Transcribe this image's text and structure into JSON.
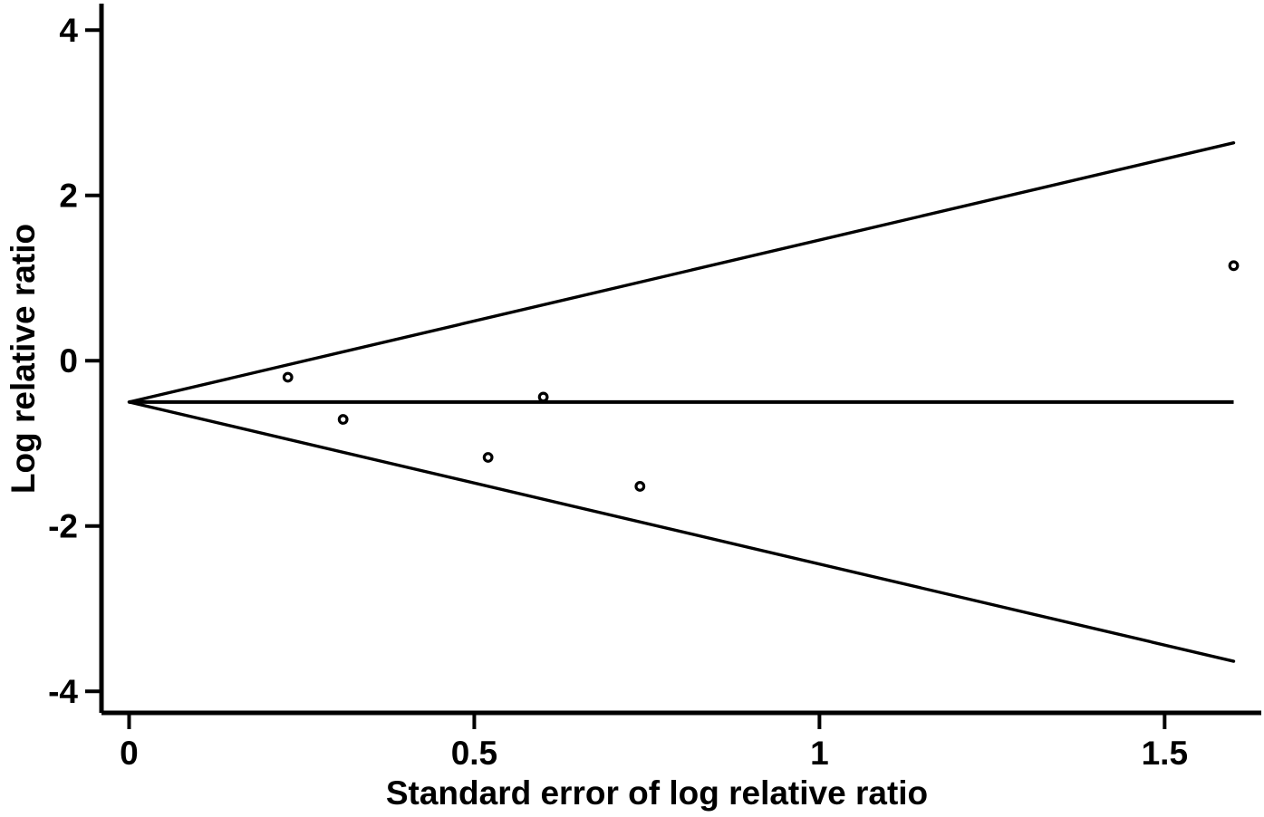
{
  "figure": {
    "background_color": "#ffffff",
    "ink_color": "#000000"
  },
  "chart_data": {
    "type": "scatter",
    "subtype": "funnel-plot",
    "title": "",
    "xlabel": "Standard error of log relative ratio",
    "ylabel": "Log relative ratio",
    "x_ticks": [
      0,
      0.5,
      1,
      1.5
    ],
    "x_tick_labels": [
      "0",
      "0.5",
      "1",
      "1.5"
    ],
    "y_ticks": [
      -4,
      -2,
      0,
      2,
      4
    ],
    "y_tick_labels": [
      "-4",
      "-2",
      "0",
      "2",
      "4"
    ],
    "xlim": [
      -0.04,
      1.64
    ],
    "ylim": [
      -4.26,
      4.32
    ],
    "grid": false,
    "legend": null,
    "points": [
      {
        "se": 0.23,
        "log_rr": -0.2
      },
      {
        "se": 0.31,
        "log_rr": -0.71
      },
      {
        "se": 0.52,
        "log_rr": -1.17
      },
      {
        "se": 0.6,
        "log_rr": -0.44
      },
      {
        "se": 0.74,
        "log_rr": -1.52
      },
      {
        "se": 1.6,
        "log_rr": 1.15
      }
    ],
    "mean_line": {
      "log_rr": -0.5,
      "se_start": 0,
      "se_end": 1.6
    },
    "pseudo_ci_lines": {
      "center_log_rr": -0.5,
      "z_multiplier": 1.96,
      "se_start": 0,
      "se_end": 1.6
    }
  }
}
